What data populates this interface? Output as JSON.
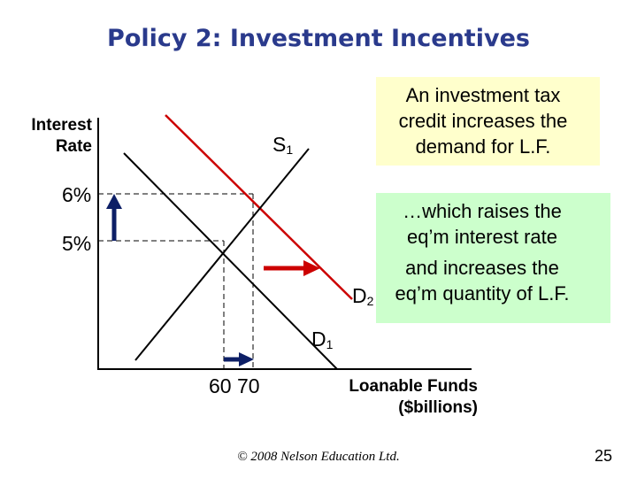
{
  "title": "Policy 2:  Investment Incentives",
  "axes": {
    "y_label_line1": "Interest",
    "y_label_line2": "Rate",
    "x_label_line1": "Loanable Funds",
    "x_label_line2": "($billions)",
    "y_ticks": [
      "6%",
      "5%"
    ],
    "x_ticks": "60 70"
  },
  "curves": {
    "supply": {
      "name": "S",
      "sub": "1"
    },
    "demand_old": {
      "name": "D",
      "sub": "1"
    },
    "demand_new": {
      "name": "D",
      "sub": "2"
    }
  },
  "callouts": {
    "box1": [
      "An investment tax",
      "credit increases the",
      "demand for L.F."
    ],
    "box2_top": [
      "…which raises the",
      "eq’m interest rate"
    ],
    "box2_bottom": [
      "and increases the",
      "eq’m quantity of L.F."
    ]
  },
  "colors": {
    "title": "#2a3a8c",
    "demand_new": "#cc0000",
    "arrows_rate": "#0d1f66",
    "box1_bg": "#ffffcc",
    "box2_bg": "#ccffcc"
  },
  "footer": "© 2008 Nelson Education Ltd.",
  "page_number": "25"
}
